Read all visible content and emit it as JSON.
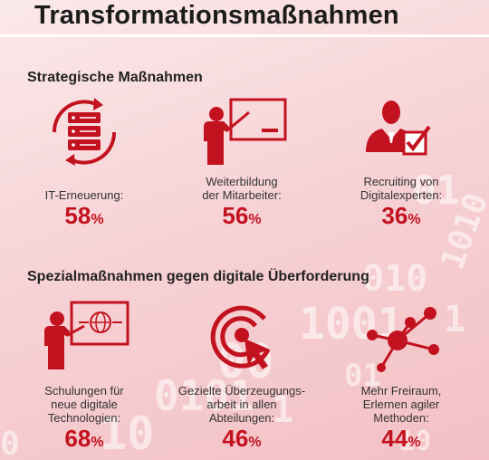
{
  "title": "Transformationsmaßnahmen",
  "sections": [
    {
      "heading": "Strategische Maßnahmen",
      "items": [
        {
          "icon": "server-sync-icon",
          "label_lines": [
            "",
            "IT-Erneuerung:"
          ],
          "percent": "58",
          "sign": "%"
        },
        {
          "icon": "presentation-icon",
          "label_lines": [
            "Weiterbildung",
            "der Mitarbeiter:"
          ],
          "percent": "56",
          "sign": "%"
        },
        {
          "icon": "recruiting-checkmark-icon",
          "label_lines": [
            "Recruiting von",
            "Digitalexperten:"
          ],
          "percent": "36",
          "sign": "%"
        }
      ]
    },
    {
      "heading": "Spezialmaßnahmen gegen digitale Überforderung",
      "items": [
        {
          "icon": "training-globe-icon",
          "label_lines": [
            "Schulungen für",
            "neue digitale",
            "Technologien:"
          ],
          "percent": "68",
          "sign": "%"
        },
        {
          "icon": "target-cursor-icon",
          "label_lines": [
            "Gezielte Überzeugungs-",
            "arbeit in allen",
            "Abteilungen:"
          ],
          "percent": "46",
          "sign": "%"
        },
        {
          "icon": "network-nodes-icon",
          "label_lines": [
            "Mehr Freiraum,",
            "Erlernen agiler",
            "Methoden:"
          ],
          "percent": "44",
          "sign": "%"
        }
      ]
    }
  ],
  "colors": {
    "accent": "#c3121f",
    "background": "#f7d3d6"
  }
}
